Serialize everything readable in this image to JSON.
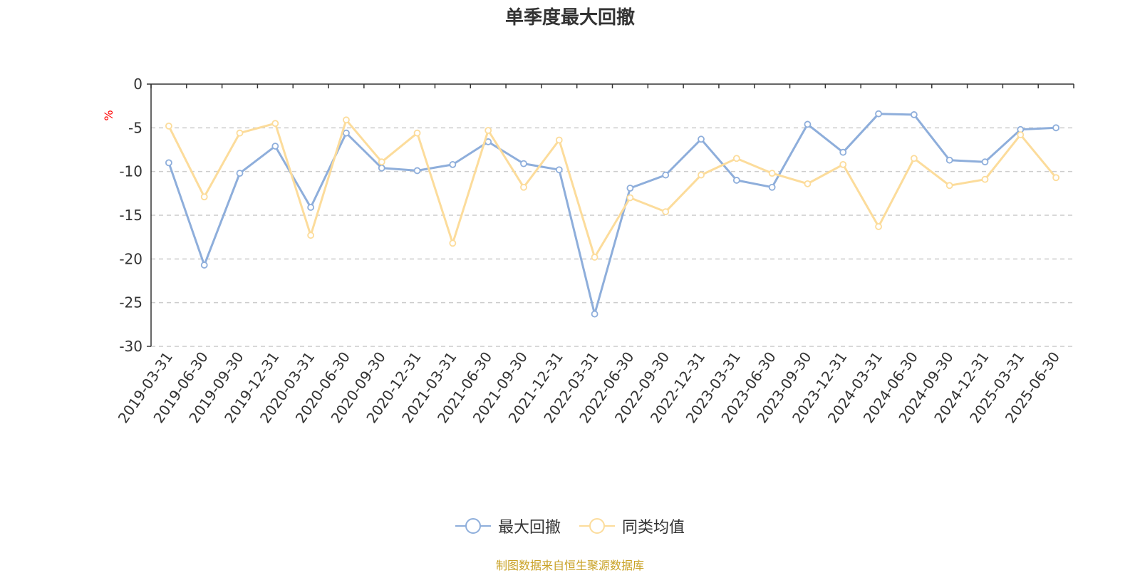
{
  "chart_data": {
    "type": "line",
    "title": "单季度最大回撤",
    "ylabel": "%",
    "ylim": [
      -30,
      0
    ],
    "yticks": [
      0,
      -5,
      -10,
      -15,
      -20,
      -25,
      -30
    ],
    "grid": true,
    "legend_position": "bottom",
    "x": [
      "2019-03-31",
      "2019-06-30",
      "2019-09-30",
      "2019-12-31",
      "2020-03-31",
      "2020-06-30",
      "2020-09-30",
      "2020-12-31",
      "2021-03-31",
      "2021-06-30",
      "2021-09-30",
      "2021-12-31",
      "2022-03-31",
      "2022-06-30",
      "2022-09-30",
      "2022-12-31",
      "2023-03-31",
      "2023-06-30",
      "2023-09-30",
      "2023-12-31",
      "2024-03-31",
      "2024-06-30",
      "2024-09-30",
      "2024-12-31",
      "2025-03-31",
      "2025-06-30"
    ],
    "series": [
      {
        "name": "最大回撤",
        "color": "#8eaedb",
        "values": [
          -9.0,
          -20.7,
          -10.2,
          -7.1,
          -14.1,
          -5.6,
          -9.6,
          -9.9,
          -9.2,
          -6.6,
          -9.1,
          -9.8,
          -26.3,
          -11.9,
          -10.4,
          -6.3,
          -11.0,
          -11.8,
          -4.6,
          -7.8,
          -3.4,
          -3.5,
          -8.7,
          -8.9,
          -5.2,
          -5.0
        ]
      },
      {
        "name": "同类均值",
        "color": "#fcdc9b",
        "values": [
          -4.8,
          -12.9,
          -5.6,
          -4.5,
          -17.3,
          -4.1,
          -8.9,
          -5.6,
          -18.2,
          -5.3,
          -11.8,
          -6.4,
          -19.8,
          -13.0,
          -14.6,
          -10.4,
          -8.5,
          -10.2,
          -11.4,
          -9.2,
          -16.3,
          -8.5,
          -11.6,
          -10.9,
          -5.8,
          -10.7
        ]
      }
    ]
  },
  "footer": {
    "source": "制图数据来自恒生聚源数据库"
  }
}
